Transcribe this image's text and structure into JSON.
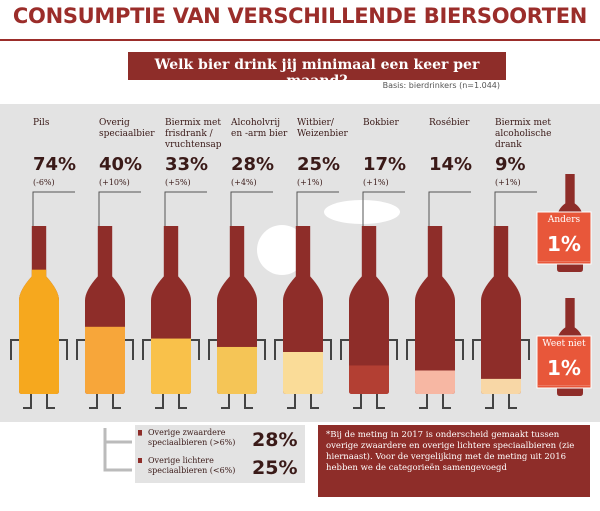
{
  "chart_data": {
    "type": "bar",
    "title": "CONSUMPTIE VAN VERSCHILLENDE BIERSOORTEN",
    "subtitle": "Welk bier drink jij minimaal een keer per maand?",
    "note": "Basis: bierdrinkers (n=1.044)",
    "categories": [
      "Pils",
      "Overig speciaalbier",
      "Biermix met frisdrank / vruchtensap",
      "Alcoholvrij en -arm bier",
      "Witbier/ Weizenbier",
      "Bokbier",
      "Rosébier",
      "Biermix met alcoholische drank"
    ],
    "values": [
      74,
      40,
      33,
      28,
      25,
      17,
      14,
      9
    ],
    "value_labels": [
      "74%",
      "40%",
      "33%",
      "28%",
      "25%",
      "17%",
      "14%",
      "9%"
    ],
    "changes": [
      "(-6%)",
      "(+10%)",
      "(+5%)",
      "(+4%)",
      "(+1%)",
      "(+1%)",
      null,
      "(+1%)"
    ],
    "colors": [
      "#f6a81e",
      "#f7a63a",
      "#f9c14a",
      "#f5c556",
      "#fadc98",
      "#b33f33",
      "#f7b7a3",
      "#f8d7a6"
    ],
    "bottle_color": "#8e2d29",
    "ylim": [
      0,
      100
    ],
    "others": [
      {
        "label": "Anders",
        "value": 1,
        "value_label": "1%"
      },
      {
        "label": "Weet niet",
        "value": 1,
        "value_label": "1%"
      }
    ],
    "breakdown": [
      {
        "label": "Overige zwaardere speciaalbieren (>6%)",
        "value": 28,
        "value_label": "28%"
      },
      {
        "label": "Overige lichtere speciaalbieren (<6%)",
        "value": 25,
        "value_label": "25%"
      }
    ],
    "footnote": "*Bij de meting in 2017 is onderscheid gemaakt tussen overige zwaardere en overige lichtere speciaalbieren (zie hiernaast). Voor de vergelijking met de meting uit 2016 hebben we de categorieën samengevoegd"
  }
}
